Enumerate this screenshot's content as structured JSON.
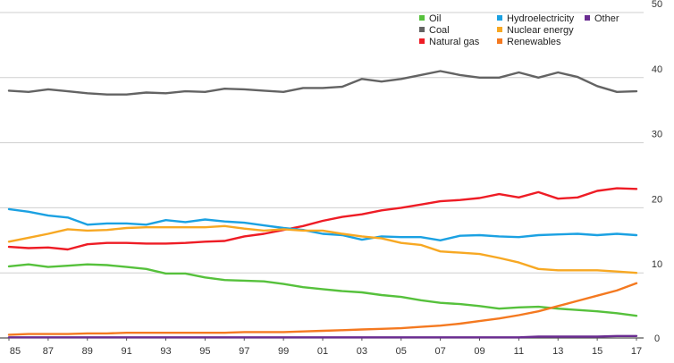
{
  "chart_data": {
    "type": "line",
    "title": "",
    "xlabel": "",
    "ylabel": "",
    "x": [
      1985,
      1986,
      1987,
      1988,
      1989,
      1990,
      1991,
      1992,
      1993,
      1994,
      1995,
      1996,
      1997,
      1998,
      1999,
      2000,
      2001,
      2002,
      2003,
      2004,
      2005,
      2006,
      2007,
      2008,
      2009,
      2010,
      2011,
      2012,
      2013,
      2014,
      2015,
      2016,
      2017
    ],
    "x_tick_labels": [
      "85",
      "87",
      "89",
      "91",
      "93",
      "95",
      "97",
      "99",
      "01",
      "03",
      "05",
      "07",
      "09",
      "11",
      "13",
      "15",
      "17"
    ],
    "xlim": [
      1985,
      2017
    ],
    "y_ticks": [
      0,
      10,
      20,
      30,
      40,
      50
    ],
    "y_tick_labels": [
      "0",
      "10",
      "20",
      "30",
      "40",
      "50"
    ],
    "ylim": [
      0,
      50
    ],
    "y_axis_side": "right",
    "grid": "horizontal",
    "legend_position": "top-right",
    "series": [
      {
        "name": "Oil",
        "color": "#56c13c",
        "values": [
          11.0,
          11.3,
          10.9,
          11.1,
          11.3,
          11.2,
          10.9,
          10.6,
          9.9,
          9.9,
          9.3,
          8.9,
          8.8,
          8.7,
          8.3,
          7.8,
          7.5,
          7.2,
          7.0,
          6.6,
          6.3,
          5.8,
          5.4,
          5.2,
          4.9,
          4.5,
          4.7,
          4.8,
          4.5,
          4.3,
          4.1,
          3.8,
          3.4
        ]
      },
      {
        "name": "Coal",
        "color": "#636363",
        "values": [
          38.0,
          37.8,
          38.2,
          37.9,
          37.6,
          37.4,
          37.4,
          37.7,
          37.6,
          37.9,
          37.8,
          38.3,
          38.2,
          38.0,
          37.8,
          38.4,
          38.4,
          38.6,
          39.8,
          39.4,
          39.8,
          40.4,
          41.0,
          40.4,
          40.0,
          40.0,
          40.8,
          40.0,
          40.8,
          40.1,
          38.7,
          37.8,
          37.9
        ]
      },
      {
        "name": "Natural gas",
        "color": "#ee1c25",
        "values": [
          14.0,
          13.8,
          13.9,
          13.6,
          14.4,
          14.6,
          14.6,
          14.5,
          14.5,
          14.6,
          14.8,
          14.9,
          15.6,
          16.0,
          16.6,
          17.2,
          18.0,
          18.6,
          19.0,
          19.6,
          20.0,
          20.5,
          21.0,
          21.2,
          21.5,
          22.1,
          21.6,
          22.4,
          21.4,
          21.6,
          22.6,
          23.0,
          22.9
        ]
      },
      {
        "name": "Hydroelectricity",
        "color": "#1ba1e2",
        "values": [
          19.8,
          19.4,
          18.8,
          18.5,
          17.4,
          17.6,
          17.6,
          17.4,
          18.1,
          17.8,
          18.2,
          17.9,
          17.7,
          17.3,
          16.9,
          16.6,
          16.0,
          15.8,
          15.1,
          15.6,
          15.5,
          15.5,
          15.0,
          15.7,
          15.8,
          15.6,
          15.5,
          15.8,
          15.9,
          16.0,
          15.8,
          16.0,
          15.8
        ]
      },
      {
        "name": "Nuclear energy",
        "color": "#f7a823",
        "values": [
          14.8,
          15.4,
          16.0,
          16.7,
          16.5,
          16.6,
          16.9,
          17.0,
          17.0,
          17.0,
          17.0,
          17.2,
          16.8,
          16.5,
          16.7,
          16.5,
          16.5,
          16.0,
          15.6,
          15.3,
          14.6,
          14.3,
          13.3,
          13.1,
          12.9,
          12.3,
          11.6,
          10.6,
          10.4,
          10.4,
          10.4,
          10.2,
          10.0
        ]
      },
      {
        "name": "Renewables",
        "color": "#f47920",
        "values": [
          0.5,
          0.6,
          0.6,
          0.6,
          0.7,
          0.7,
          0.8,
          0.8,
          0.8,
          0.8,
          0.8,
          0.8,
          0.9,
          0.9,
          0.9,
          1.0,
          1.1,
          1.2,
          1.3,
          1.4,
          1.5,
          1.7,
          1.9,
          2.2,
          2.6,
          3.0,
          3.5,
          4.1,
          4.9,
          5.7,
          6.5,
          7.3,
          8.4
        ]
      },
      {
        "name": "Other",
        "color": "#6a2c91",
        "values": [
          0.1,
          0.1,
          0.1,
          0.1,
          0.1,
          0.1,
          0.1,
          0.1,
          0.1,
          0.1,
          0.1,
          0.1,
          0.1,
          0.1,
          0.1,
          0.1,
          0.1,
          0.1,
          0.1,
          0.1,
          0.1,
          0.1,
          0.1,
          0.1,
          0.1,
          0.1,
          0.1,
          0.2,
          0.2,
          0.2,
          0.2,
          0.3,
          0.3
        ]
      }
    ]
  }
}
